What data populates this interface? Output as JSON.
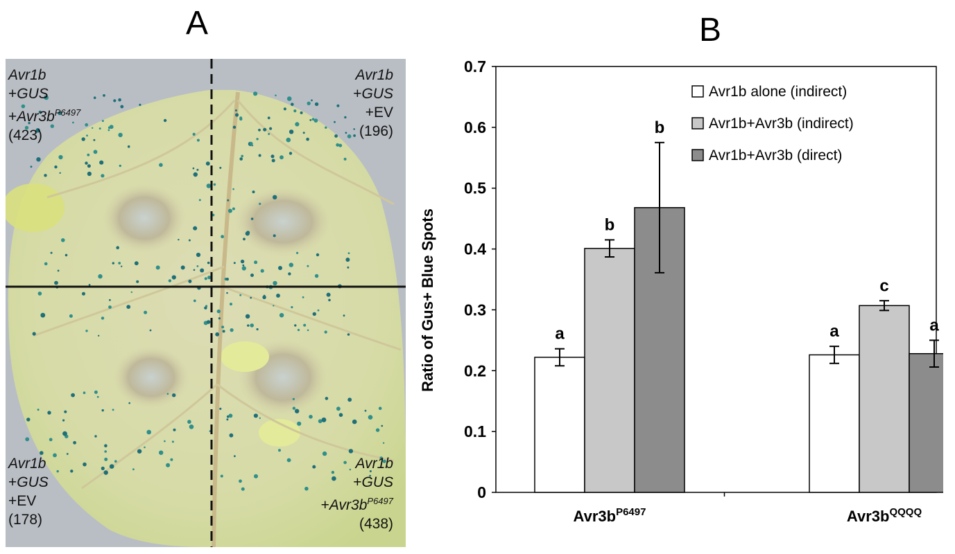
{
  "panel_a": {
    "letter": "A",
    "quadrants": [
      {
        "line1": "Avr1b",
        "line2_prefix": "+",
        "line2_italic": "GUS",
        "line3_prefix": "+",
        "line3_italic": "Avr3b",
        "line3_sup": "P6497",
        "count": "(423)"
      },
      {
        "line1": "Avr1b",
        "line2_prefix": "+",
        "line2_italic": "GUS",
        "line3_text": "+EV",
        "count": "(196)"
      },
      {
        "line1": "Avr1b",
        "line2_prefix": "+",
        "line2_italic": "GUS",
        "line3_text": "+EV",
        "count": "(178)"
      },
      {
        "line1": "Avr1b",
        "line2_prefix": "+",
        "line2_italic": "GUS",
        "line3_prefix": "+",
        "line3_italic": "Avr3b",
        "line3_sup": "P6497",
        "count": "(438)"
      }
    ]
  },
  "panel_b": {
    "letter": "B"
  },
  "chart_data": {
    "type": "bar",
    "categories": [
      {
        "base": "Avr3b",
        "sup": "P6497"
      },
      {
        "base": "Avr3b",
        "sup": "QQQQ"
      }
    ],
    "series": [
      {
        "name": "Avr1b alone (indirect)",
        "color": "#ffffff",
        "values": [
          0.222,
          0.226
        ],
        "errors": [
          0.014,
          0.014
        ],
        "letters": [
          "a",
          "a"
        ]
      },
      {
        "name": "Avr1b+Avr3b (indirect)",
        "color": "#c8c8c8",
        "values": [
          0.401,
          0.307
        ],
        "errors": [
          0.014,
          0.008
        ],
        "letters": [
          "b",
          "c"
        ]
      },
      {
        "name": "Avr1b+Avr3b (direct)",
        "color": "#8c8c8c",
        "values": [
          0.468,
          0.228
        ],
        "errors": [
          0.107,
          0.022
        ],
        "letters": [
          "b",
          "a"
        ]
      }
    ],
    "ylabel": "Ratio of Gus+ Blue Spots",
    "xlabel": "",
    "ylim": [
      0,
      0.7
    ],
    "yticks": [
      "0",
      "0.1",
      "0.2",
      "0.3",
      "0.4",
      "0.5",
      "0.6",
      "0.7"
    ],
    "legend_position": "top-right",
    "grid": false
  }
}
